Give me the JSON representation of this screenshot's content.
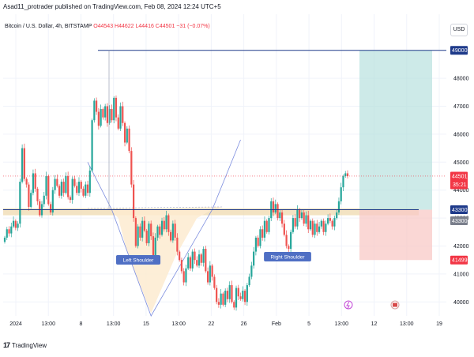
{
  "header": {
    "published": "Asad11_protrader published on TradingView.com, Feb 08, 2024 12:24 UTC+5"
  },
  "legend": {
    "symbol": "Bitcoin / U.S. Dollar, 4h, BITSTAMP",
    "ohlc": "O44543  H44622  L44416  C44501  −31 (−0.07%)"
  },
  "currency_button": "USD",
  "footer": {
    "logo": "17",
    "brand": "TradingView"
  },
  "colors": {
    "up": "#26a69a",
    "down": "#ef5350",
    "target_zone": "#b2dfdb",
    "stop_zone": "#f8c9c7",
    "pattern_fill": "#fdebd0",
    "neckline": "#1e3a8a",
    "current_price": "#f23645",
    "projection": "#7b8cde",
    "support_band": "#f0dcb4"
  },
  "chart_data": {
    "type": "candlestick",
    "symbol": "BTCUSD",
    "timeframe": "4h",
    "ylim": [
      39500,
      49500
    ],
    "y_ticks": [
      40000,
      41000,
      42000,
      43000,
      44000,
      45000,
      46000,
      47000,
      48000
    ],
    "x_ticks": [
      "2024",
      "13:00",
      "8",
      "13:00",
      "15",
      "13:00",
      "22",
      "26",
      "Feb",
      "5",
      "13:00",
      "12",
      "13:00",
      "19"
    ],
    "price_labels": [
      {
        "value": 49000,
        "text": "49000",
        "kind": "target"
      },
      {
        "value": 44501,
        "text": "44501",
        "kind": "current",
        "countdown": "35:21"
      },
      {
        "value": 43300,
        "text": "43300",
        "kind": "neckline"
      },
      {
        "value": 43300,
        "text": "43300",
        "kind": "support"
      },
      {
        "value": 41499,
        "text": "41499",
        "kind": "stop"
      }
    ],
    "annotations": [
      {
        "text": "Left Shoulder",
        "anchor": "left-shoulder"
      },
      {
        "text": "Right Shoulder",
        "anchor": "right-shoulder"
      }
    ],
    "levels": {
      "target": 49000,
      "entry": 43300,
      "stop": 41499,
      "current": 44501,
      "neckline": 43300,
      "support_band": [
        43100,
        43350
      ]
    },
    "closes": [
      42300,
      42600,
      42450,
      42700,
      42900,
      42650,
      42800,
      44300,
      45500,
      44400,
      44200,
      43400,
      43900,
      44600,
      44050,
      43600,
      43100,
      43500,
      43800,
      44500,
      43500,
      43200,
      44000,
      44400,
      44150,
      43800,
      44300,
      43900,
      44500,
      43750,
      43650,
      44400,
      44150,
      43900,
      44300,
      44050,
      43800,
      44200,
      43900,
      44700,
      46500,
      47200,
      46800,
      46300,
      46900,
      46600,
      47000,
      46400,
      46900,
      46500,
      47300,
      46600,
      46200,
      47000,
      46400,
      45700,
      46200,
      45400,
      44200,
      43000,
      42000,
      42700,
      42300,
      42900,
      42550,
      42100,
      42800,
      42350,
      41600,
      42300,
      42700,
      42400,
      42900,
      42600,
      43100,
      42500,
      42200,
      42800,
      42300,
      41800,
      41500,
      41100,
      40700,
      41200,
      41600,
      41200,
      41800,
      41500,
      41300,
      41700,
      41400,
      41900,
      41100,
      40700,
      41300,
      40900,
      40500,
      40000,
      39900,
      40300,
      39900,
      40400,
      40100,
      40600,
      40000,
      39800,
      40500,
      40200,
      40100,
      40400,
      40000,
      40600,
      40900,
      41300,
      41800,
      42300,
      42000,
      42600,
      42300,
      42900,
      42500,
      43000,
      43600,
      43200,
      43500,
      43000,
      43200,
      42800,
      42400,
      42000,
      41900,
      42500,
      43000,
      42700,
      43300,
      43000,
      43200,
      42800,
      43100,
      42600,
      42900,
      42400,
      42800,
      42500,
      42700,
      42900,
      42500,
      42800,
      43000,
      42900,
      42700,
      43000,
      43200,
      43600,
      44100,
      44500,
      44600,
      44501
    ],
    "candle_x_range": [
      "2024-01-01",
      "2024-02-08"
    ]
  }
}
